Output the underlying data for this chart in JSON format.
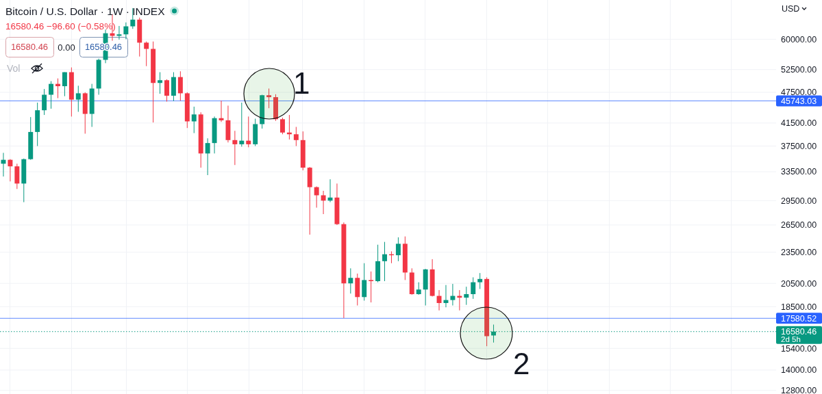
{
  "chart_data": {
    "type": "candlestick",
    "title": "Bitcoin / U.S. Dollar · 1W · INDEX",
    "subtitle": "16580.46 −96.60 (−0.58%)",
    "ylabel": "USD",
    "categories": [
      null,
      null,
      null,
      null,
      null,
      null,
      null,
      null,
      null,
      null,
      null,
      null,
      null,
      null,
      null,
      null,
      null,
      null,
      null,
      null,
      null,
      null,
      null,
      null,
      null,
      null,
      null,
      null,
      null,
      null,
      null,
      null,
      null,
      null,
      null,
      null,
      null,
      null,
      null,
      null,
      null,
      null,
      null,
      null,
      null,
      null,
      null,
      null,
      null,
      null,
      null,
      null,
      null,
      null,
      null,
      null,
      null,
      null,
      null,
      null,
      null,
      null,
      null,
      null,
      null,
      null,
      null,
      null,
      null,
      null,
      null,
      null,
      null,
      null,
      null,
      null,
      null,
      null,
      null,
      null,
      null,
      null,
      null,
      null,
      null,
      null,
      null,
      null,
      null,
      null,
      null,
      null,
      null,
      null,
      null,
      null,
      null,
      null,
      null,
      null,
      null,
      null,
      null,
      null,
      null,
      null,
      null,
      null,
      null,
      null,
      null,
      null,
      null,
      null
    ],
    "ohlc": [
      [
        34700,
        36400,
        32800,
        35300
      ],
      [
        35300,
        35400,
        32100,
        34300
      ],
      [
        34300,
        34700,
        31050,
        31800
      ],
      [
        31800,
        35500,
        29300,
        35400
      ],
      [
        35400,
        42600,
        35300,
        39900
      ],
      [
        39900,
        45400,
        37500,
        43900
      ],
      [
        43900,
        48200,
        43000,
        47000
      ],
      [
        47000,
        49900,
        44200,
        49300
      ],
      [
        49300,
        50500,
        46300,
        48800
      ],
      [
        48800,
        51900,
        46700,
        51900
      ],
      [
        51900,
        53000,
        42700,
        46000
      ],
      [
        46000,
        48900,
        43600,
        47300
      ],
      [
        47300,
        47500,
        39600,
        43200
      ],
      [
        43200,
        49300,
        40800,
        48300
      ],
      [
        48300,
        55100,
        47000,
        54800
      ],
      [
        54800,
        62600,
        54000,
        61600
      ],
      [
        61600,
        67000,
        59600,
        60900
      ],
      [
        60900,
        63600,
        59900,
        61300
      ],
      [
        61300,
        64600,
        60000,
        63500
      ],
      [
        63500,
        68800,
        62800,
        65400
      ],
      [
        65400,
        66000,
        55600,
        59100
      ],
      [
        59100,
        59400,
        53300,
        57500
      ],
      [
        57500,
        59400,
        41600,
        49500
      ],
      [
        49500,
        51900,
        47200,
        50100
      ],
      [
        50100,
        50300,
        45600,
        46800
      ],
      [
        46800,
        51900,
        45700,
        50800
      ],
      [
        50800,
        52100,
        45800,
        47300
      ],
      [
        47300,
        47500,
        40600,
        41800
      ],
      [
        41800,
        44600,
        39700,
        43100
      ],
      [
        43100,
        43500,
        34100,
        36300
      ],
      [
        36300,
        38800,
        33000,
        38000
      ],
      [
        38000,
        42700,
        36300,
        42400
      ],
      [
        42400,
        45800,
        41700,
        42000
      ],
      [
        42000,
        44800,
        38100,
        38500
      ],
      [
        38500,
        40100,
        34500,
        37800
      ],
      [
        37800,
        45400,
        37400,
        38400
      ],
      [
        38400,
        42700,
        37300,
        37800
      ],
      [
        37800,
        42300,
        37500,
        41300
      ],
      [
        41300,
        47000,
        40500,
        46900
      ],
      [
        46900,
        48300,
        44300,
        46500
      ],
      [
        46500,
        47100,
        41900,
        42200
      ],
      [
        42200,
        42500,
        39500,
        39800
      ],
      [
        39800,
        43000,
        38600,
        39500
      ],
      [
        39500,
        40800,
        37500,
        38500
      ],
      [
        38500,
        40000,
        33700,
        34100
      ],
      [
        34100,
        34200,
        25400,
        31300
      ],
      [
        31300,
        31400,
        28600,
        30200
      ],
      [
        30200,
        30800,
        27800,
        29500
      ],
      [
        29500,
        32400,
        29300,
        29900
      ],
      [
        29900,
        31800,
        26500,
        26600
      ],
      [
        26600,
        26800,
        17600,
        20500
      ],
      [
        20500,
        21900,
        19600,
        21000
      ],
      [
        21000,
        21400,
        18600,
        19300
      ],
      [
        19300,
        22400,
        19000,
        20800
      ],
      [
        20800,
        21600,
        18850,
        20700
      ],
      [
        20700,
        24300,
        20600,
        22600
      ],
      [
        22600,
        24600,
        20700,
        23300
      ],
      [
        23300,
        23600,
        22400,
        23200
      ],
      [
        23200,
        25100,
        22600,
        24400
      ],
      [
        24400,
        25200,
        20800,
        21500
      ],
      [
        21500,
        21900,
        19500,
        19550
      ],
      [
        19550,
        20600,
        19500,
        19950
      ],
      [
        19950,
        21850,
        18600,
        21800
      ],
      [
        21800,
        22800,
        19350,
        19400
      ],
      [
        19400,
        19900,
        18200,
        18800
      ],
      [
        18800,
        20350,
        18450,
        19050
      ],
      [
        19050,
        20450,
        18600,
        19400
      ],
      [
        19400,
        19900,
        18200,
        19250
      ],
      [
        19250,
        20200,
        18650,
        19550
      ],
      [
        19550,
        21050,
        19150,
        20600
      ],
      [
        20600,
        21450,
        20000,
        20900
      ],
      [
        20900,
        21050,
        15550,
        16250
      ],
      [
        16300,
        17100,
        15800,
        16580.46
      ],
      null,
      null,
      null,
      null,
      null,
      null,
      null,
      null,
      null,
      null,
      null,
      null,
      null,
      null,
      null,
      null,
      null,
      null,
      null,
      null,
      null,
      null,
      null,
      null,
      null,
      null,
      null,
      null,
      null,
      null,
      null,
      null,
      null,
      null,
      null,
      null,
      null,
      null,
      null,
      null,
      null
    ],
    "colors": [
      "#089981",
      "#f23645",
      "#f23645",
      "#089981",
      "#089981",
      "#089981",
      "#089981",
      "#089981",
      "#f23645",
      "#089981",
      "#f23645",
      "#089981",
      "#f23645",
      "#089981",
      "#089981",
      "#089981",
      "#f23645",
      "#089981",
      "#089981",
      "#089981",
      "#f23645",
      "#f23645",
      "#f23645",
      "#089981",
      "#f23645",
      "#089981",
      "#f23645",
      "#f23645",
      "#089981",
      "#f23645",
      "#089981",
      "#089981",
      "#f23645",
      "#f23645",
      "#f23645",
      "#089981",
      "#f23645",
      "#089981",
      "#089981",
      "#f23645",
      "#f23645",
      "#f23645",
      "#f23645",
      "#f23645",
      "#f23645",
      "#f23645",
      "#f23645",
      "#f23645",
      "#089981",
      "#f23645",
      "#f23645",
      "#089981",
      "#f23645",
      "#089981",
      "#f23645",
      "#089981",
      "#089981",
      "#f23645",
      "#089981",
      "#f23645",
      "#f23645",
      "#089981",
      "#089981",
      "#f23645",
      "#f23645",
      "#089981",
      "#089981",
      "#f23645",
      "#089981",
      "#089981",
      "#089981",
      "#f23645",
      "#089981",
      null,
      null,
      null,
      null,
      null,
      null,
      null,
      null,
      null,
      null,
      null,
      null,
      null,
      null,
      null,
      null,
      null,
      null,
      null,
      null,
      null,
      null,
      null,
      null,
      null,
      null,
      null,
      null,
      null,
      null,
      null,
      null,
      null,
      null,
      null,
      null,
      null,
      null,
      null,
      null,
      null
    ],
    "ylim": [
      12600,
      71300
    ],
    "yticks": [
      {
        "value": 60000,
        "label": "60000.00"
      },
      {
        "value": 52500,
        "label": "52500.00"
      },
      {
        "value": 47500,
        "label": "47500.00"
      },
      {
        "value": 41500,
        "label": "41500.00"
      },
      {
        "value": 37500,
        "label": "37500.00"
      },
      {
        "value": 33500,
        "label": "33500.00"
      },
      {
        "value": 29500,
        "label": "29500.00"
      },
      {
        "value": 26500,
        "label": "26500.00"
      },
      {
        "value": 23500,
        "label": "23500.00"
      },
      {
        "value": 20500,
        "label": "20500.00"
      },
      {
        "value": 18500,
        "label": "18500.00"
      },
      {
        "value": 15400,
        "label": "15400.00"
      },
      {
        "value": 14000,
        "label": "14000.00"
      },
      {
        "value": 12800,
        "label": "12800.00"
      }
    ],
    "log": true,
    "grid": true,
    "tick_labels": "y",
    "ref_lines": [
      {
        "axis": "y",
        "value": 45743.03,
        "label": "45743.03",
        "color": "#2962ff"
      },
      {
        "axis": "y",
        "value": 17580.52,
        "label": "17580.52",
        "color": "#2962ff"
      },
      {
        "axis": "y",
        "value": 16580.46,
        "label": "16580.46",
        "color": "#089981",
        "line_style": "dotted"
      }
    ],
    "annotations": [
      "16580.46",
      "0.00",
      "16580.46",
      "Vol",
      "1",
      "2",
      "2d 5h"
    ]
  }
}
